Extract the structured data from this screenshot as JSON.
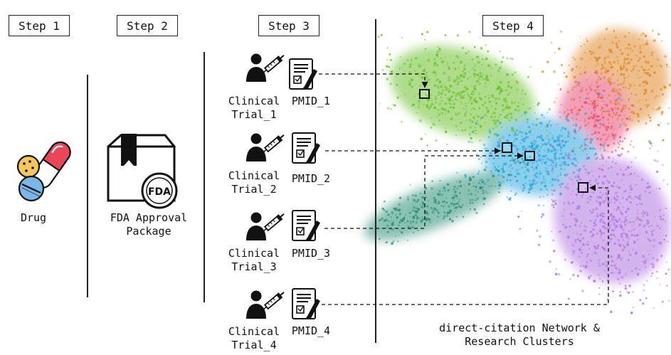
{
  "steps": [
    {
      "label": "Step 1"
    },
    {
      "label": "Step 2"
    },
    {
      "label": "Step 3"
    },
    {
      "label": "Step 4"
    }
  ],
  "drug_label": "Drug",
  "fda": {
    "badge": "FDA",
    "label_line1": "FDA Approval",
    "label_line2": "Package"
  },
  "trials": [
    {
      "line1": "Clinical",
      "line2": "Trial_1",
      "pmid": "PMID_1"
    },
    {
      "line1": "Clinical",
      "line2": "Trial_2",
      "pmid": "PMID_2"
    },
    {
      "line1": "Clinical",
      "line2": "Trial_3",
      "pmid": "PMID_3"
    },
    {
      "line1": "Clinical",
      "line2": "Trial_4",
      "pmid": "PMID_4"
    }
  ],
  "network_caption_line1": "direct-citation Network &",
  "network_caption_line2": "Research Clusters",
  "colors": {
    "green": "#6cc12e",
    "teal": "#2a8f74",
    "blue": "#2ea8e0",
    "purple": "#b277e0",
    "orange": "#e08a2a",
    "pink": "#e8507a"
  }
}
